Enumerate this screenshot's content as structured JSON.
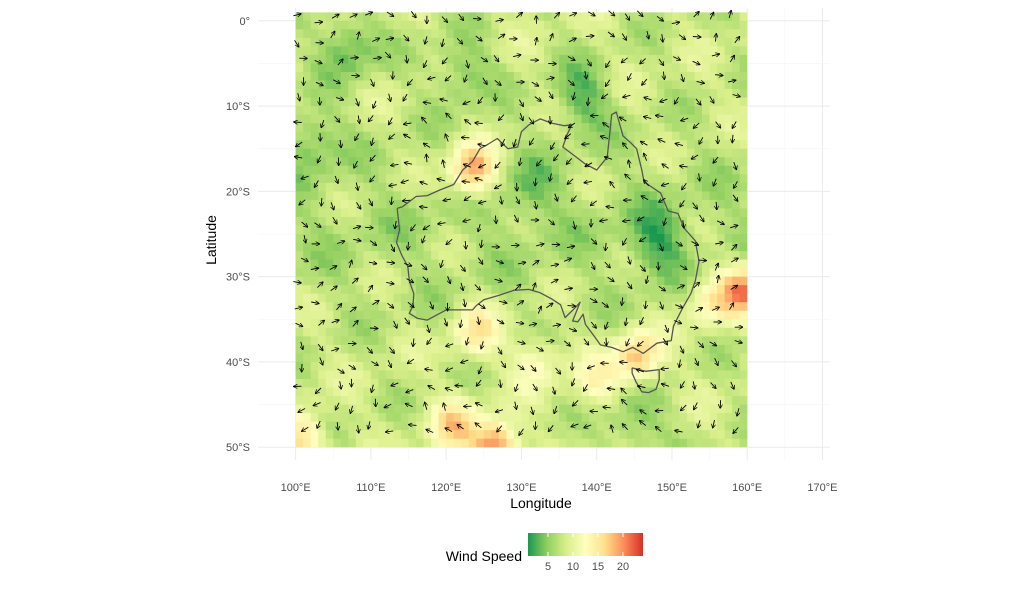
{
  "chart_data": {
    "type": "heatmap",
    "subtype": "wind-field-map",
    "xlabel": "Longitude",
    "ylabel": "Latitude",
    "x_ticks": [
      "100°E",
      "110°E",
      "120°E",
      "130°E",
      "140°E",
      "150°E",
      "160°E",
      "170°E"
    ],
    "x_tick_values": [
      100,
      110,
      120,
      130,
      140,
      150,
      160,
      170
    ],
    "y_ticks": [
      "0°",
      "10°S",
      "20°S",
      "30°S",
      "40°S",
      "50°S"
    ],
    "y_tick_values": [
      0,
      -10,
      -20,
      -30,
      -40,
      -50
    ],
    "xlim": [
      95,
      171
    ],
    "ylim": [
      -51.5,
      1.5
    ],
    "field_extent": {
      "lon": [
        100,
        160
      ],
      "lat": [
        -50,
        1
      ]
    },
    "grid": true,
    "legend": {
      "title": "Wind Speed",
      "position": "bottom",
      "ticks": [
        "5",
        "10",
        "15",
        "20"
      ],
      "tick_values": [
        5,
        10,
        15,
        20
      ],
      "range": [
        1,
        24
      ],
      "colors": [
        "#1a9850",
        "#91cf60",
        "#d9ef8b",
        "#ffffbf",
        "#fee08b",
        "#fc8d59",
        "#d73027"
      ]
    },
    "hotspots": [
      {
        "lon": 123.5,
        "lat": -17.5,
        "speed": 20
      },
      {
        "lon": 124.0,
        "lat": -36.5,
        "speed": 15
      },
      {
        "lon": 126.5,
        "lat": -50.0,
        "speed": 22
      },
      {
        "lon": 121.0,
        "lat": -47.5,
        "speed": 16
      },
      {
        "lon": 101.0,
        "lat": -49.0,
        "speed": 16
      },
      {
        "lon": 145.5,
        "lat": -39.5,
        "speed": 18
      },
      {
        "lon": 159.5,
        "lat": -31.5,
        "speed": 20
      },
      {
        "lon": 155.0,
        "lat": -33.0,
        "speed": 14
      },
      {
        "lon": 132.0,
        "lat": -40.0,
        "speed": 13
      },
      {
        "lon": 140.0,
        "lat": -42.5,
        "speed": 13
      }
    ],
    "calm_zones": [
      {
        "lon": 107,
        "lat": -3,
        "speed": 3
      },
      {
        "lon": 122,
        "lat": -6,
        "speed": 4
      },
      {
        "lon": 138,
        "lat": -9,
        "speed": 3
      },
      {
        "lon": 148,
        "lat": -26,
        "speed": 3
      },
      {
        "lon": 102,
        "lat": -14,
        "speed": 4
      },
      {
        "lon": 145,
        "lat": -47,
        "speed": 4
      },
      {
        "lon": 131,
        "lat": -20,
        "speed": 5
      }
    ],
    "coastline": {
      "australia": [
        [
          113.5,
          -22
        ],
        [
          114.2,
          -21.8
        ],
        [
          116,
          -20.6
        ],
        [
          117.5,
          -20.5
        ],
        [
          119,
          -19.9
        ],
        [
          121,
          -19.2
        ],
        [
          122.2,
          -17.5
        ],
        [
          123.5,
          -16.5
        ],
        [
          124.5,
          -15
        ],
        [
          125.5,
          -14.5
        ],
        [
          126.8,
          -13.8
        ],
        [
          128.2,
          -15
        ],
        [
          129.5,
          -14.8
        ],
        [
          130,
          -13
        ],
        [
          131,
          -12.2
        ],
        [
          132.5,
          -11.5
        ],
        [
          134,
          -12
        ],
        [
          135.7,
          -12.3
        ],
        [
          136.7,
          -12.2
        ],
        [
          136.1,
          -13.3
        ],
        [
          135.5,
          -14.8
        ],
        [
          137,
          -15.8
        ],
        [
          138.5,
          -16.8
        ],
        [
          140,
          -17.5
        ],
        [
          141.4,
          -16
        ],
        [
          141.7,
          -13.5
        ],
        [
          142,
          -11
        ],
        [
          142.6,
          -10.7
        ],
        [
          143.5,
          -13.5
        ],
        [
          144.5,
          -14.3
        ],
        [
          145.3,
          -15
        ],
        [
          146,
          -17.5
        ],
        [
          146.3,
          -18.9
        ],
        [
          148.5,
          -20.2
        ],
        [
          149.5,
          -22.3
        ],
        [
          150.8,
          -22.6
        ],
        [
          151.6,
          -24.3
        ],
        [
          153.1,
          -25.8
        ],
        [
          153.6,
          -28.2
        ],
        [
          153.1,
          -30.5
        ],
        [
          152.5,
          -32
        ],
        [
          151.4,
          -33.7
        ],
        [
          150.2,
          -35.8
        ],
        [
          149.9,
          -37.5
        ],
        [
          148,
          -37.8
        ],
        [
          146.2,
          -39
        ],
        [
          144.8,
          -38.3
        ],
        [
          143.5,
          -38.8
        ],
        [
          142,
          -38.3
        ],
        [
          140.5,
          -38
        ],
        [
          139.6,
          -36.9
        ],
        [
          138.5,
          -35.6
        ],
        [
          138.2,
          -34.4
        ],
        [
          137.5,
          -35.3
        ],
        [
          136.8,
          -35.2
        ],
        [
          137.8,
          -33
        ],
        [
          137.2,
          -33.6
        ],
        [
          135.8,
          -34.8
        ],
        [
          135.2,
          -33.3
        ],
        [
          134,
          -32.6
        ],
        [
          132.5,
          -31.9
        ],
        [
          131,
          -31.5
        ],
        [
          129,
          -31.6
        ],
        [
          127,
          -32.2
        ],
        [
          125,
          -32.7
        ],
        [
          124,
          -33.4
        ],
        [
          123.5,
          -33.9
        ],
        [
          121.9,
          -33.9
        ],
        [
          120,
          -33.9
        ],
        [
          118.5,
          -34.6
        ],
        [
          117.5,
          -35.1
        ],
        [
          116.2,
          -34.9
        ],
        [
          115.1,
          -34.3
        ],
        [
          115.6,
          -33.4
        ],
        [
          115.7,
          -32
        ],
        [
          115.1,
          -30.5
        ],
        [
          114.9,
          -28.8
        ],
        [
          114.1,
          -27.5
        ],
        [
          113.4,
          -26
        ],
        [
          113.8,
          -24.5
        ],
        [
          113.5,
          -22
        ]
      ],
      "tasmania": [
        [
          144.7,
          -40.7
        ],
        [
          146.5,
          -41.1
        ],
        [
          148.3,
          -40.9
        ],
        [
          148.3,
          -42.1
        ],
        [
          147.9,
          -43.2
        ],
        [
          146.9,
          -43.6
        ],
        [
          146,
          -43.5
        ],
        [
          145.2,
          -42.3
        ],
        [
          144.7,
          -41.3
        ],
        [
          144.7,
          -40.7
        ]
      ]
    }
  }
}
